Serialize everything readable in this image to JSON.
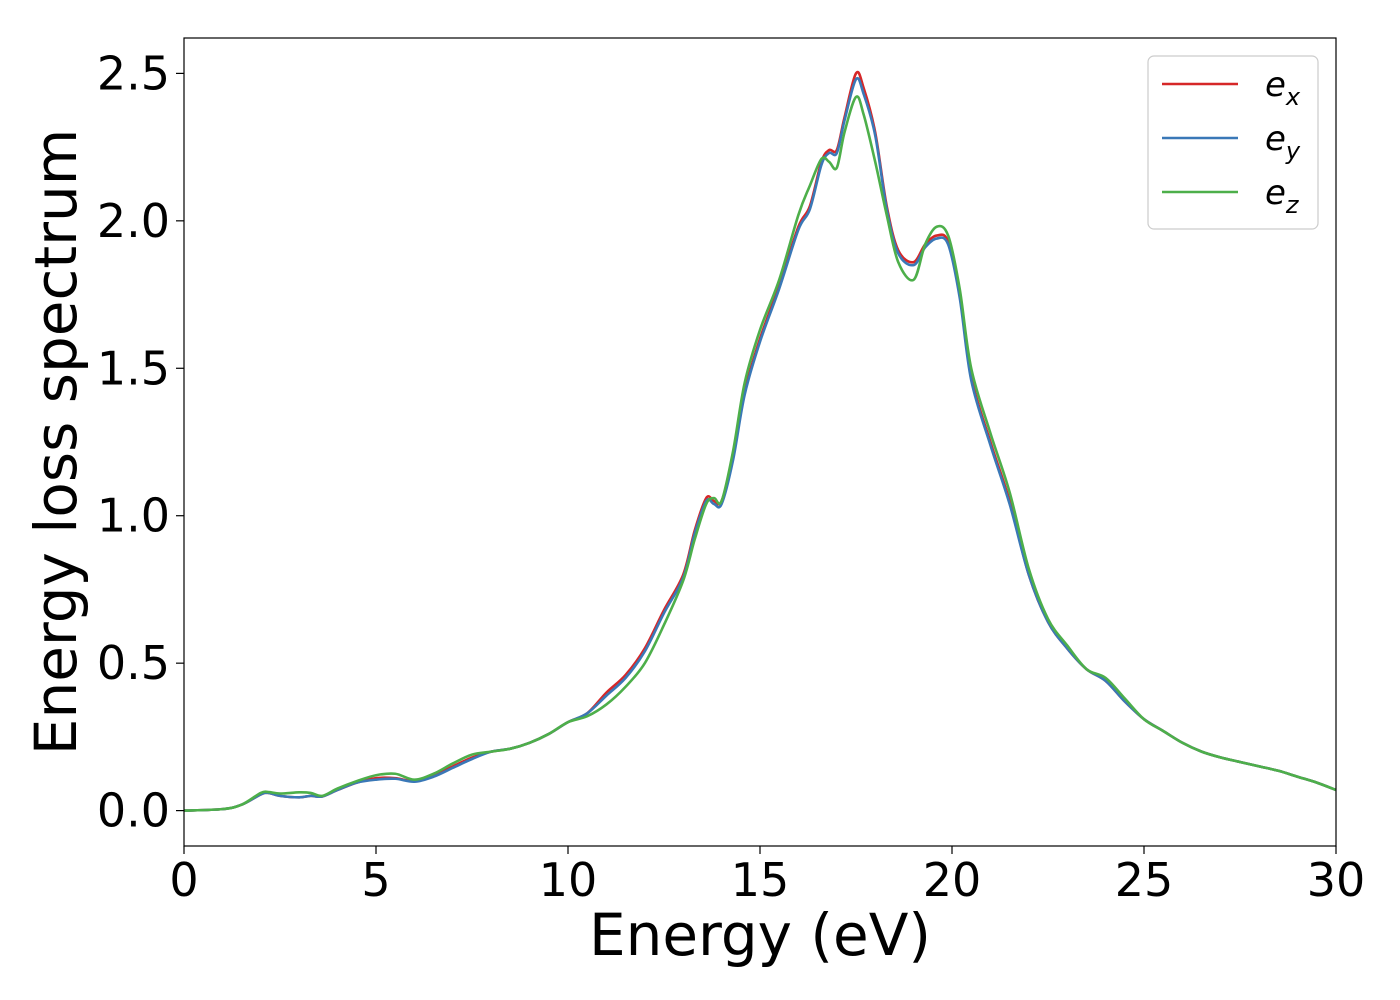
{
  "chart_data": {
    "type": "line",
    "xlabel": "Energy (eV)",
    "ylabel": "Energy loss spectrum",
    "xlim": [
      0,
      30
    ],
    "ylim": [
      -0.12,
      2.62
    ],
    "xticks": [
      0,
      5,
      10,
      15,
      20,
      25,
      30
    ],
    "xtick_labels": [
      "0",
      "5",
      "10",
      "15",
      "20",
      "25",
      "30"
    ],
    "yticks": [
      0.0,
      0.5,
      1.0,
      1.5,
      2.0,
      2.5
    ],
    "ytick_labels": [
      "0.0",
      "0.5",
      "1.0",
      "1.5",
      "2.0",
      "2.5"
    ],
    "grid": false,
    "legend_position": "top-right",
    "legend": [
      {
        "base": "e",
        "sub": "x"
      },
      {
        "base": "e",
        "sub": "y"
      },
      {
        "base": "e",
        "sub": "z"
      }
    ],
    "series": [
      {
        "name": "e_x",
        "color": "#d62728",
        "x": [
          0,
          1,
          1.5,
          2,
          2.2,
          2.5,
          3,
          3.3,
          3.6,
          4,
          4.5,
          5,
          5.5,
          6,
          6.5,
          7,
          7.5,
          8,
          8.5,
          9,
          9.5,
          10,
          10.5,
          11,
          11.5,
          12,
          12.5,
          13,
          13.3,
          13.6,
          13.8,
          14,
          14.3,
          14.6,
          15,
          15.5,
          16,
          16.3,
          16.6,
          16.8,
          17,
          17.2,
          17.5,
          17.7,
          18,
          18.3,
          18.6,
          19,
          19.3,
          19.6,
          19.9,
          20.2,
          20.5,
          21,
          21.5,
          22,
          22.5,
          23,
          23.5,
          24,
          24.5,
          25,
          25.5,
          26,
          26.5,
          27,
          27.5,
          28,
          28.5,
          29,
          29.5,
          30
        ],
        "y": [
          0,
          0.005,
          0.02,
          0.055,
          0.06,
          0.05,
          0.045,
          0.05,
          0.048,
          0.07,
          0.095,
          0.11,
          0.11,
          0.1,
          0.12,
          0.15,
          0.18,
          0.2,
          0.21,
          0.23,
          0.26,
          0.3,
          0.33,
          0.4,
          0.46,
          0.55,
          0.68,
          0.8,
          0.95,
          1.06,
          1.05,
          1.05,
          1.2,
          1.42,
          1.6,
          1.78,
          1.98,
          2.05,
          2.2,
          2.24,
          2.24,
          2.35,
          2.5,
          2.45,
          2.3,
          2.05,
          1.9,
          1.86,
          1.92,
          1.95,
          1.93,
          1.75,
          1.47,
          1.25,
          1.05,
          0.8,
          0.64,
          0.55,
          0.48,
          0.44,
          0.37,
          0.31,
          0.27,
          0.23,
          0.2,
          0.18,
          0.165,
          0.15,
          0.135,
          0.115,
          0.095,
          0.07
        ]
      },
      {
        "name": "e_y",
        "color": "#3a78b7",
        "x": [
          0,
          1,
          1.5,
          2,
          2.2,
          2.5,
          3,
          3.3,
          3.6,
          4,
          4.5,
          5,
          5.5,
          6,
          6.5,
          7,
          7.5,
          8,
          8.5,
          9,
          9.5,
          10,
          10.5,
          11,
          11.5,
          12,
          12.5,
          13,
          13.3,
          13.6,
          13.8,
          14,
          14.3,
          14.6,
          15,
          15.5,
          16,
          16.3,
          16.6,
          16.8,
          17,
          17.2,
          17.5,
          17.7,
          18,
          18.3,
          18.6,
          19,
          19.3,
          19.6,
          19.9,
          20.2,
          20.5,
          21,
          21.5,
          22,
          22.5,
          23,
          23.5,
          24,
          24.5,
          25,
          25.5,
          26,
          26.5,
          27,
          27.5,
          28,
          28.5,
          29,
          29.5,
          30
        ],
        "y": [
          0,
          0.005,
          0.02,
          0.055,
          0.06,
          0.05,
          0.045,
          0.05,
          0.048,
          0.07,
          0.095,
          0.105,
          0.108,
          0.098,
          0.115,
          0.145,
          0.175,
          0.2,
          0.21,
          0.23,
          0.26,
          0.3,
          0.33,
          0.39,
          0.45,
          0.54,
          0.67,
          0.79,
          0.94,
          1.05,
          1.04,
          1.04,
          1.19,
          1.41,
          1.59,
          1.77,
          1.97,
          2.04,
          2.19,
          2.23,
          2.23,
          2.34,
          2.48,
          2.43,
          2.29,
          2.04,
          1.89,
          1.85,
          1.91,
          1.94,
          1.92,
          1.74,
          1.46,
          1.24,
          1.04,
          0.8,
          0.64,
          0.55,
          0.48,
          0.44,
          0.37,
          0.31,
          0.27,
          0.23,
          0.2,
          0.18,
          0.165,
          0.15,
          0.135,
          0.115,
          0.095,
          0.07
        ]
      },
      {
        "name": "e_z",
        "color": "#4daf4a",
        "x": [
          0,
          1,
          1.5,
          2,
          2.2,
          2.5,
          3,
          3.3,
          3.6,
          4,
          4.5,
          5,
          5.5,
          6,
          6.5,
          7,
          7.5,
          8,
          8.5,
          9,
          9.5,
          10,
          10.5,
          11,
          11.5,
          12,
          12.5,
          13,
          13.3,
          13.6,
          13.8,
          14,
          14.3,
          14.6,
          15,
          15.5,
          16,
          16.3,
          16.6,
          16.8,
          17,
          17.2,
          17.5,
          17.7,
          18,
          18.3,
          18.6,
          19,
          19.3,
          19.6,
          19.9,
          20.2,
          20.5,
          21,
          21.5,
          22,
          22.5,
          23,
          23.5,
          24,
          24.5,
          25,
          25.5,
          26,
          26.5,
          27,
          27.5,
          28,
          28.5,
          29,
          29.5,
          30
        ],
        "y": [
          0,
          0.005,
          0.02,
          0.06,
          0.063,
          0.058,
          0.062,
          0.06,
          0.05,
          0.075,
          0.1,
          0.12,
          0.125,
          0.105,
          0.125,
          0.16,
          0.19,
          0.2,
          0.21,
          0.23,
          0.26,
          0.3,
          0.32,
          0.36,
          0.42,
          0.5,
          0.63,
          0.78,
          0.92,
          1.04,
          1.06,
          1.05,
          1.22,
          1.45,
          1.63,
          1.8,
          2.02,
          2.12,
          2.21,
          2.2,
          2.18,
          2.3,
          2.42,
          2.36,
          2.2,
          2.02,
          1.86,
          1.8,
          1.92,
          1.98,
          1.95,
          1.77,
          1.5,
          1.28,
          1.08,
          0.82,
          0.65,
          0.56,
          0.48,
          0.45,
          0.38,
          0.31,
          0.27,
          0.23,
          0.2,
          0.18,
          0.165,
          0.15,
          0.135,
          0.115,
          0.095,
          0.07
        ]
      }
    ]
  }
}
